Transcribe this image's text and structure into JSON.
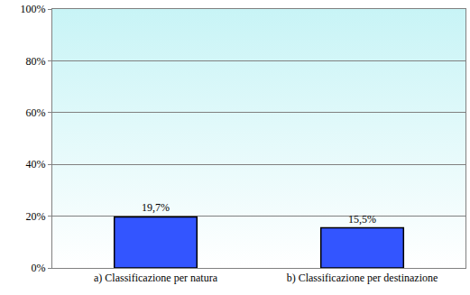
{
  "chart_data": {
    "type": "bar",
    "categories": [
      "a) Classificazione per natura",
      "b) Classificazione per destinazione"
    ],
    "values": [
      19.7,
      15.5
    ],
    "value_labels": [
      "19,7%",
      "15,5%"
    ],
    "data_labels": true,
    "color": "#3355ff",
    "ylim": [
      0,
      100
    ],
    "yticks": [
      {
        "value": 0,
        "label": "0%"
      },
      {
        "value": 20,
        "label": "20%"
      },
      {
        "value": 40,
        "label": "40%"
      },
      {
        "value": 60,
        "label": "60%"
      },
      {
        "value": 80,
        "label": "80%"
      },
      {
        "value": 100,
        "label": "100%"
      }
    ],
    "grid": true
  }
}
